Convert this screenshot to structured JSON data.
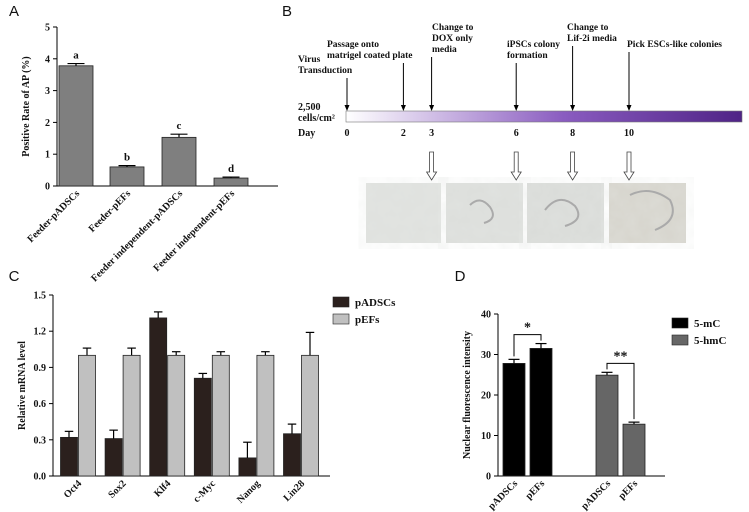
{
  "chart_data": [
    {
      "type": "bar",
      "panel": "A",
      "ylabel": "Positive Rate of AP (%)",
      "categories": [
        "Feeder-pADSCs",
        "Feeder-pEFs",
        "Feeder independent-pADSCs",
        "Feeder independent-pEFs"
      ],
      "values": [
        3.78,
        0.6,
        1.53,
        0.25
      ],
      "errors": [
        0.07,
        0.04,
        0.1,
        0.03
      ],
      "annotations": [
        "a",
        "b",
        "c",
        "d"
      ],
      "color": "#7f7f7f",
      "ylim": [
        0,
        5
      ],
      "yticks": [
        0,
        1,
        2,
        3,
        4,
        5
      ]
    },
    {
      "type": "bar",
      "panel": "C",
      "ylabel": "Relative mRNA level",
      "categories": [
        "Oct4",
        "Sox2",
        "Klf4",
        "c-Myc",
        "Nanog",
        "Lin28"
      ],
      "series": [
        {
          "name": "pADSCs",
          "color": "#2b201d",
          "values": [
            0.32,
            0.31,
            1.31,
            0.81,
            0.15,
            0.35
          ],
          "errors": [
            0.05,
            0.07,
            0.05,
            0.04,
            0.13,
            0.08
          ]
        },
        {
          "name": "pEFs",
          "color": "#c0c0c0",
          "values": [
            1,
            1,
            1,
            1,
            1,
            1
          ],
          "errors": [
            0.06,
            0.06,
            0.03,
            0.03,
            0.03,
            0.19
          ]
        }
      ],
      "ylim": [
        0,
        1.5
      ],
      "yticks": [
        {
          "value": 0,
          "label": "0.0"
        },
        0.3,
        0.6,
        0.9,
        1.2,
        1.5
      ],
      "legend": "upper right"
    },
    {
      "type": "bar",
      "panel": "D",
      "ylabel": "Nuclear fluorescence intensity",
      "categories": [
        "pADSCs",
        "pEFs",
        "pADSCs",
        "pEFs"
      ],
      "series": [
        {
          "name": "5-mC",
          "color": "#000000",
          "values": [
            27.8,
            31.5,
            null,
            null
          ],
          "errors": [
            1.0,
            1.2,
            null,
            null
          ]
        },
        {
          "name": "5-hmC",
          "color": "#666666",
          "values": [
            null,
            null,
            24.9,
            12.8
          ],
          "errors": [
            null,
            null,
            0.7,
            0.5
          ]
        }
      ],
      "annotations": [
        "*",
        "**"
      ],
      "ylim": [
        0,
        40
      ],
      "yticks": [
        0,
        10,
        20,
        30,
        40
      ],
      "legend": "upper right"
    }
  ],
  "timeline": {
    "panel": "B",
    "cell_density": [
      "2,500",
      "cells/cm²"
    ],
    "day_label": "Day",
    "events": [
      {
        "day": 0,
        "label": [
          "Virus",
          "Transduction"
        ]
      },
      {
        "day": 2,
        "label": [
          "Passage onto",
          "matrigel coated plate"
        ]
      },
      {
        "day": 3,
        "label": [
          "Change to",
          "DOX only",
          "media"
        ]
      },
      {
        "day": 6,
        "label": [
          "iPSCs colony",
          "formation"
        ]
      },
      {
        "day": 8,
        "label": [
          "Change to",
          "Lif-2i media"
        ]
      },
      {
        "day": 10,
        "label": [
          "Pick ESCs-like colonies"
        ]
      }
    ]
  }
}
